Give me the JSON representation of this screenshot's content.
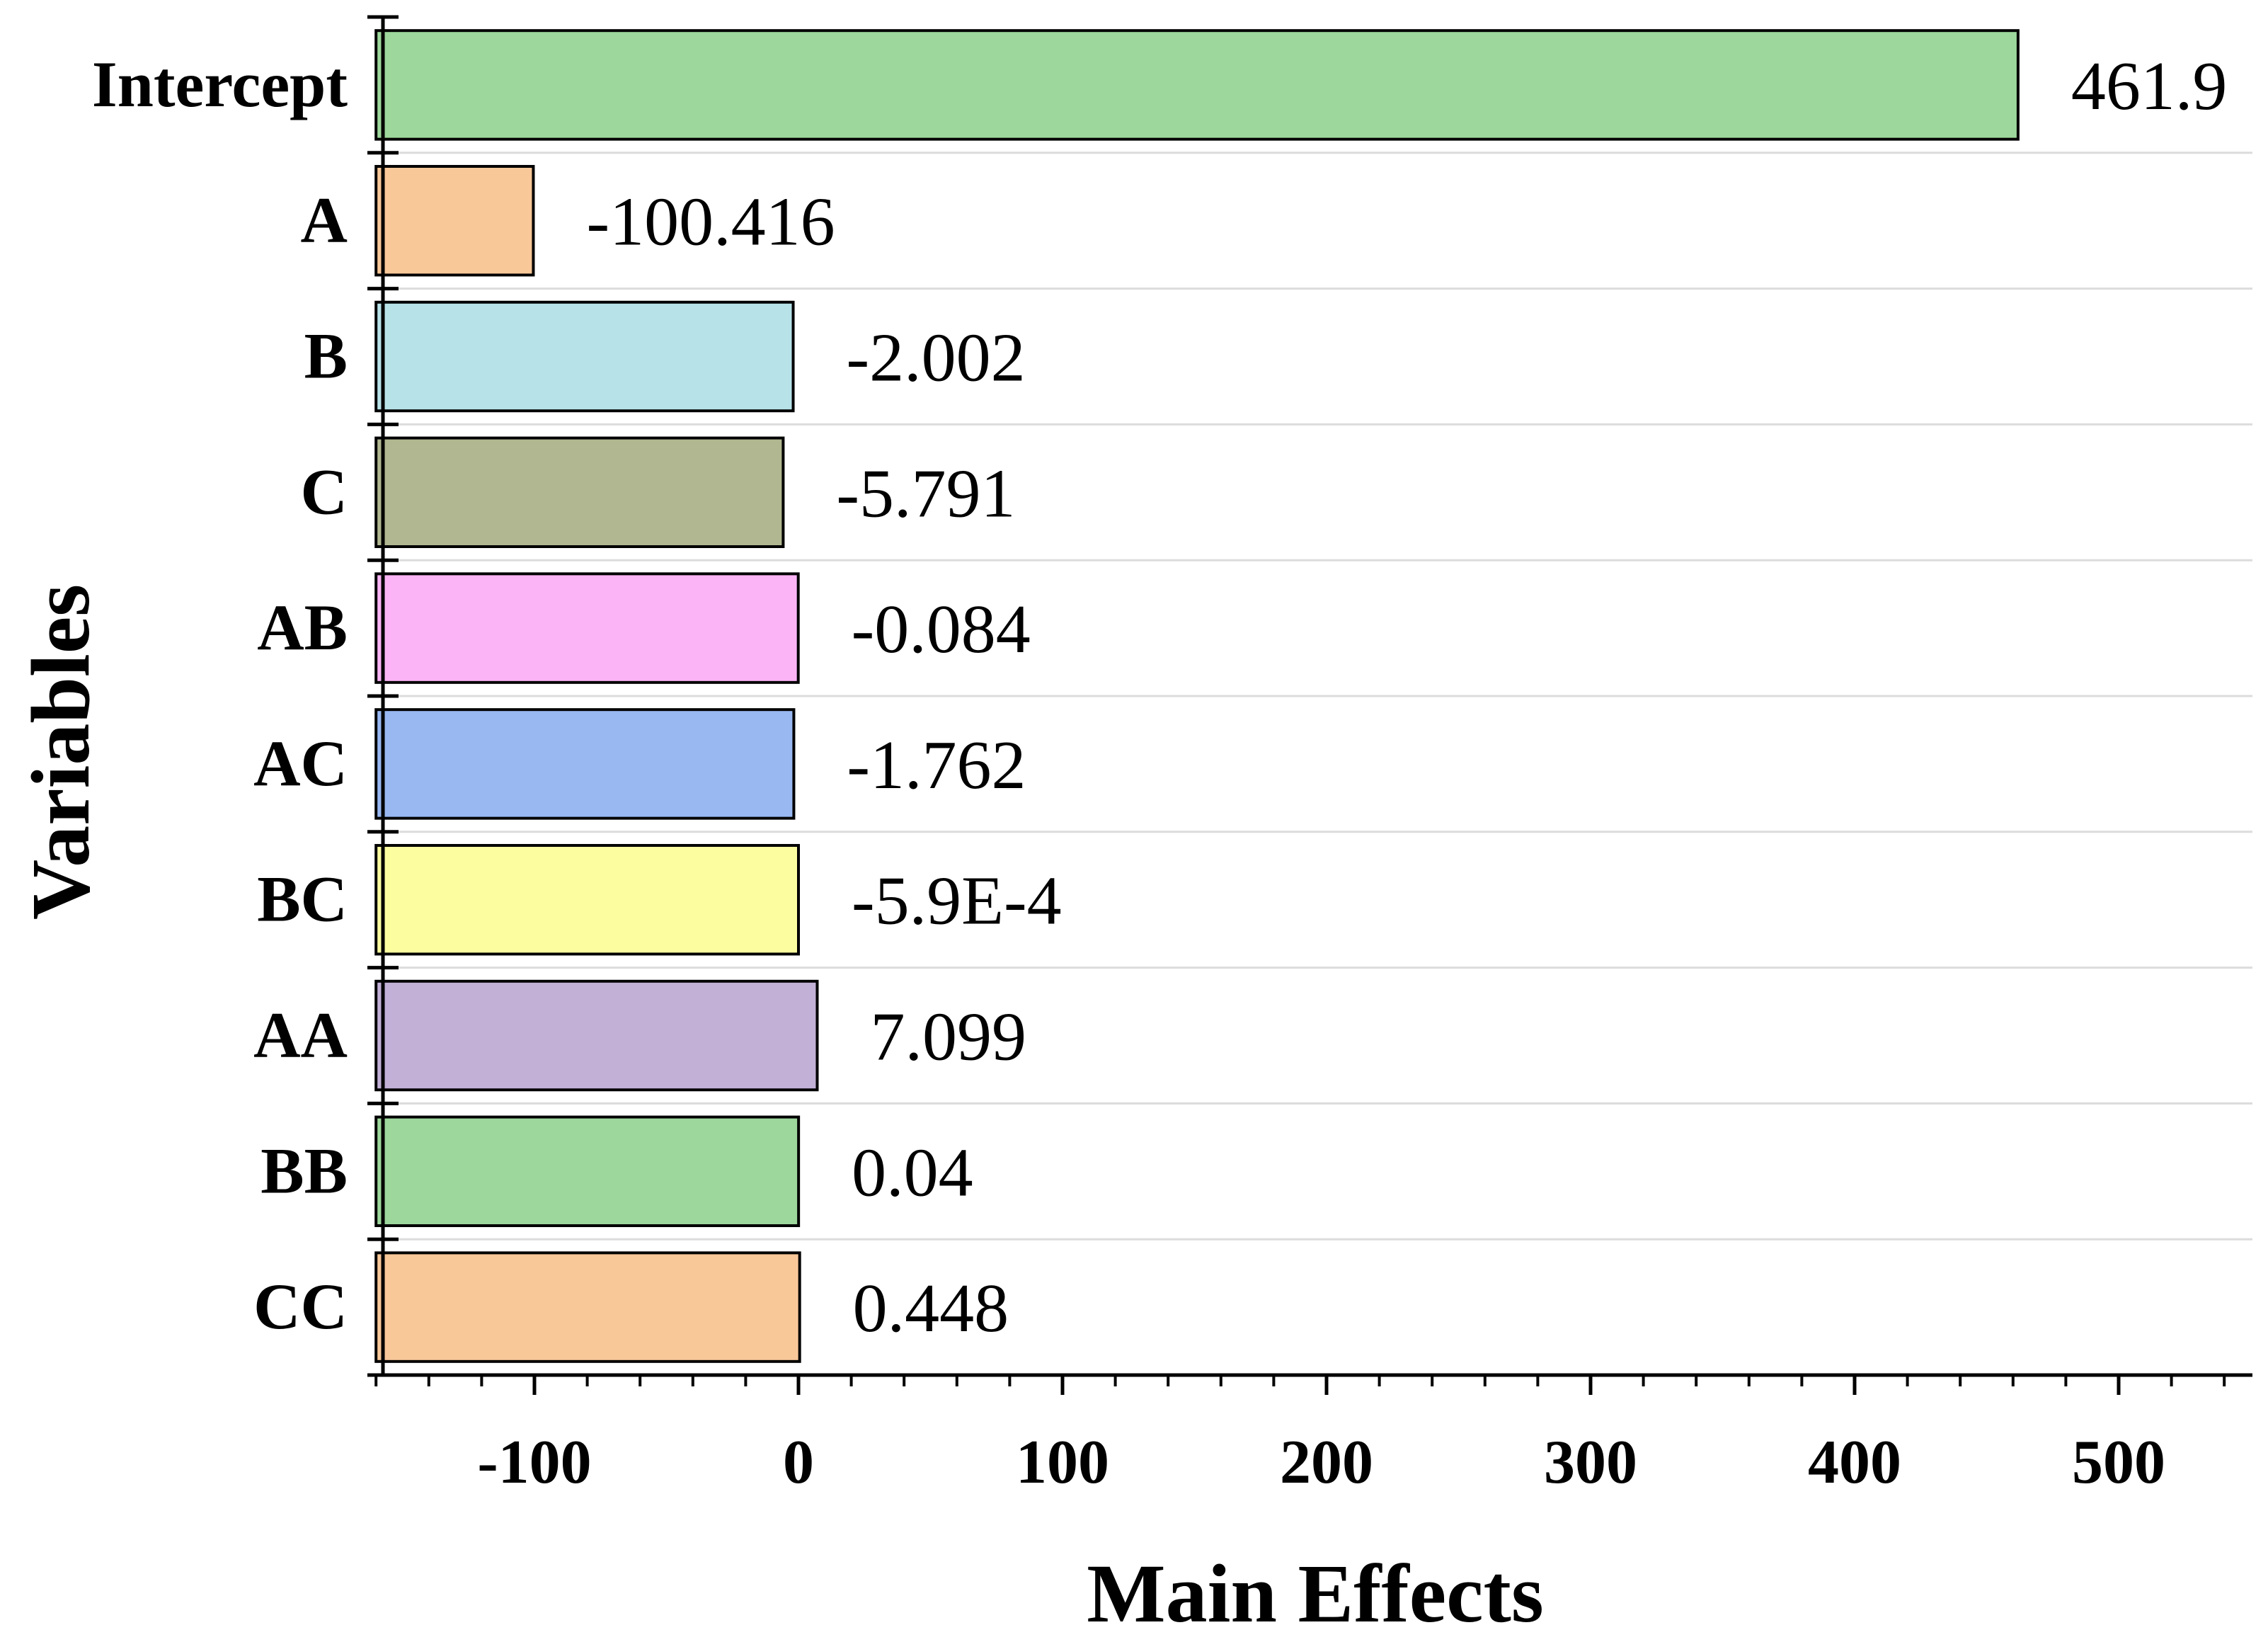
{
  "chart_data": {
    "type": "bar",
    "orientation": "horizontal",
    "categories": [
      "Intercept",
      "A",
      "B",
      "C",
      "AB",
      "AC",
      "BC",
      "AA",
      "BB",
      "CC"
    ],
    "values": [
      461.9,
      -100.416,
      -2.002,
      -5.791,
      -0.084,
      -1.762,
      -0.00059,
      7.099,
      0.04,
      0.448
    ],
    "value_labels": [
      "461.9",
      "-100.416",
      "-2.002",
      "-5.791",
      "-0.084",
      "-1.762",
      "-5.9E-4",
      "7.099",
      "0.04",
      "0.448"
    ],
    "colors": [
      "#9dd79c",
      "#f9c899",
      "#b7e2e8",
      "#b1b891",
      "#fbb5f6",
      "#99b8f2",
      "#fbfd9f",
      "#c2b0d6",
      "#9dd79c",
      "#f9c899"
    ],
    "xlabel": "Main Effects",
    "ylabel": "Variables",
    "xlim": [
      -160,
      550
    ],
    "xticks": [
      -100,
      0,
      100,
      200,
      300,
      400,
      500
    ],
    "xtick_labels": [
      "-100",
      "0",
      "100",
      "200",
      "300",
      "400",
      "500"
    ],
    "grid": "horizontal lines between bars",
    "legend": "none"
  }
}
